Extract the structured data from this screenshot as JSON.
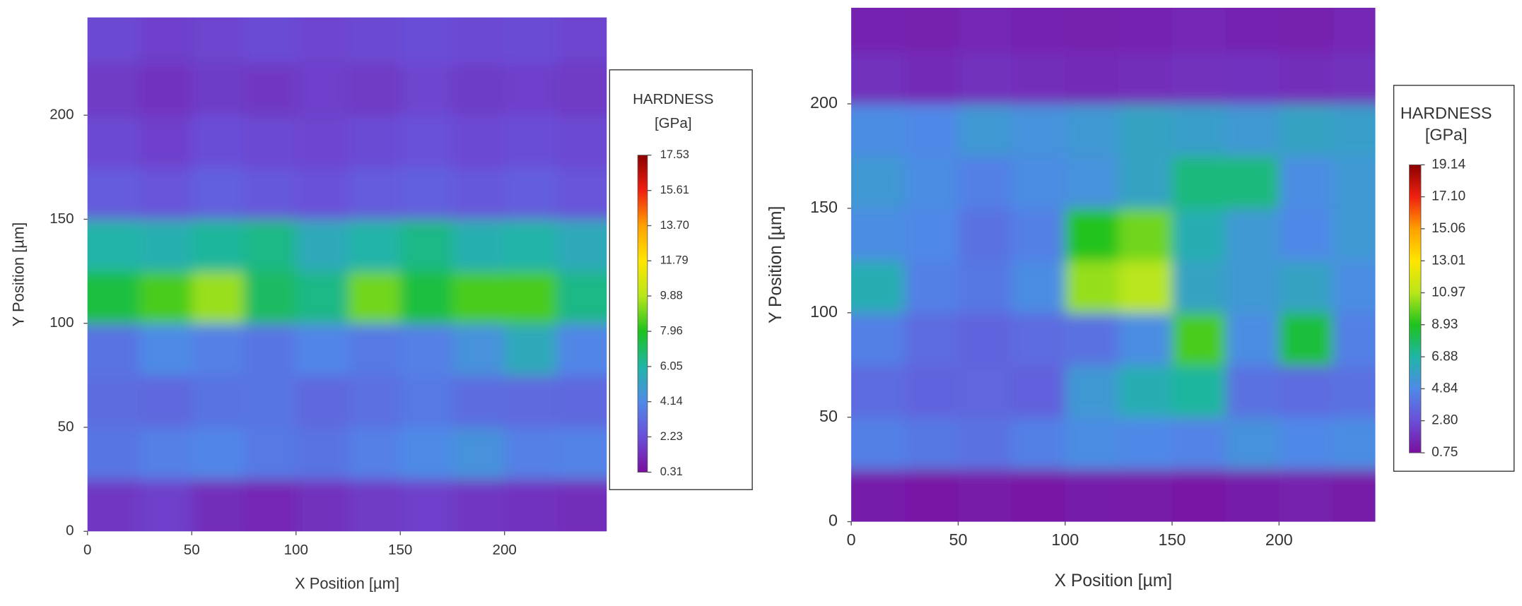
{
  "chart_data": [
    {
      "type": "heatmap",
      "x_label": "X Position [µm]",
      "y_label": "Y Position [µm]",
      "xlim": [
        0,
        249
      ],
      "ylim": [
        0,
        247
      ],
      "xticks": [
        0,
        50,
        100,
        150,
        200
      ],
      "yticks": [
        0,
        50,
        100,
        150,
        200
      ],
      "x": [
        12.5,
        37.5,
        62.5,
        87.5,
        112.5,
        137.5,
        162.5,
        187.5,
        212.5,
        237.5
      ],
      "y": [
        12.5,
        37.5,
        62.5,
        87.5,
        112.5,
        137.5,
        162.5,
        187.5,
        212.5,
        237.5
      ],
      "z": [
        [
          1.5,
          1.8,
          1.2,
          1.0,
          1.3,
          1.6,
          1.8,
          1.5,
          1.4,
          1.2
        ],
        [
          3.5,
          3.8,
          4.0,
          3.6,
          3.4,
          3.8,
          4.2,
          4.5,
          3.8,
          3.9
        ],
        [
          3.2,
          3.0,
          3.4,
          3.5,
          3.0,
          3.3,
          3.6,
          3.2,
          3.1,
          3.0
        ],
        [
          3.4,
          4.2,
          3.8,
          3.5,
          4.0,
          3.6,
          3.8,
          4.5,
          5.5,
          4.0
        ],
        [
          7.5,
          8.5,
          9.5,
          7.0,
          6.5,
          9.0,
          7.5,
          8.5,
          8.5,
          6.5
        ],
        [
          6.0,
          5.8,
          6.2,
          6.5,
          5.5,
          6.0,
          6.5,
          5.8,
          6.0,
          5.5
        ],
        [
          2.6,
          2.4,
          2.8,
          2.5,
          2.3,
          2.6,
          2.8,
          2.5,
          2.7,
          2.4
        ],
        [
          2.0,
          1.8,
          2.2,
          2.0,
          1.9,
          2.1,
          2.3,
          2.0,
          2.2,
          2.0
        ],
        [
          1.6,
          1.4,
          1.7,
          1.5,
          1.8,
          1.6,
          1.9,
          1.7,
          1.8,
          1.6
        ],
        [
          2.0,
          1.8,
          1.9,
          2.1,
          1.9,
          2.0,
          2.2,
          2.0,
          2.1,
          1.9
        ]
      ],
      "colorbar_title": [
        "HARDNESS",
        "[GPa]"
      ],
      "clim": [
        0.31,
        17.53
      ],
      "colorbar_ticks": [
        17.53,
        15.61,
        {
          "value": 13.7,
          "label": "13.70"
        },
        11.79,
        9.88,
        7.96,
        6.05,
        4.14,
        2.23,
        0.31
      ],
      "colorscale": [
        "#7a0f9e",
        "#6a4fd8",
        "#4f8ae8",
        "#1fb5a6",
        "#1ec21e",
        "#b8e61a",
        "#ffe600",
        "#ffa000",
        "#f02010",
        "#8b0000"
      ]
    },
    {
      "type": "heatmap",
      "x_label": "X Position [µm]",
      "y_label": "Y Position [µm]",
      "xlim": [
        0,
        245
      ],
      "ylim": [
        0,
        246
      ],
      "xticks": [
        0,
        50,
        100,
        150,
        200
      ],
      "yticks": [
        0,
        50,
        100,
        150,
        200
      ],
      "x": [
        12.5,
        37.5,
        62.5,
        87.5,
        112.5,
        137.5,
        162.5,
        187.5,
        212.5,
        237.5
      ],
      "y": [
        12.5,
        37.5,
        62.5,
        87.5,
        112.5,
        137.5,
        162.5,
        187.5,
        212.5,
        237.5
      ],
      "z": [
        [
          1.2,
          1.0,
          1.1,
          1.0,
          1.2,
          1.1,
          1.0,
          1.2,
          1.3,
          1.1
        ],
        [
          4.5,
          4.2,
          4.0,
          4.5,
          5.0,
          4.8,
          4.6,
          5.2,
          4.8,
          5.0
        ],
        [
          3.8,
          3.5,
          3.6,
          3.4,
          5.5,
          6.5,
          7.0,
          4.0,
          3.8,
          4.0
        ],
        [
          4.5,
          3.8,
          3.5,
          3.8,
          4.0,
          5.0,
          9.5,
          5.0,
          8.5,
          4.5
        ],
        [
          6.5,
          4.5,
          4.2,
          5.0,
          10.5,
          11.0,
          6.0,
          5.5,
          6.0,
          5.0
        ],
        [
          5.0,
          4.8,
          4.0,
          4.5,
          9.0,
          10.0,
          6.5,
          5.5,
          4.8,
          5.5
        ],
        [
          5.5,
          5.0,
          4.5,
          5.0,
          5.2,
          6.0,
          7.5,
          7.5,
          5.0,
          5.5
        ],
        [
          5.0,
          4.8,
          5.5,
          5.2,
          5.5,
          6.0,
          5.8,
          5.5,
          6.0,
          5.8
        ],
        [
          1.8,
          1.6,
          1.8,
          1.7,
          1.6,
          1.7,
          1.8,
          1.9,
          1.7,
          1.8
        ],
        [
          1.4,
          1.3,
          1.5,
          1.4,
          1.3,
          1.4,
          1.5,
          1.4,
          1.3,
          1.5
        ]
      ],
      "colorbar_title": [
        "HARDNESS",
        "[GPa]"
      ],
      "clim": [
        0.75,
        19.14
      ],
      "colorbar_ticks": [
        19.14,
        {
          "value": 17.1,
          "label": "17.10"
        },
        15.06,
        13.01,
        10.97,
        8.93,
        6.88,
        4.84,
        {
          "value": 2.8,
          "label": "2.80"
        },
        0.75
      ],
      "colorscale": [
        "#7a0f9e",
        "#6a4fd8",
        "#4f8ae8",
        "#1fb5a6",
        "#1ec21e",
        "#b8e61a",
        "#ffe600",
        "#ffa000",
        "#f02010",
        "#8b0000"
      ]
    }
  ]
}
